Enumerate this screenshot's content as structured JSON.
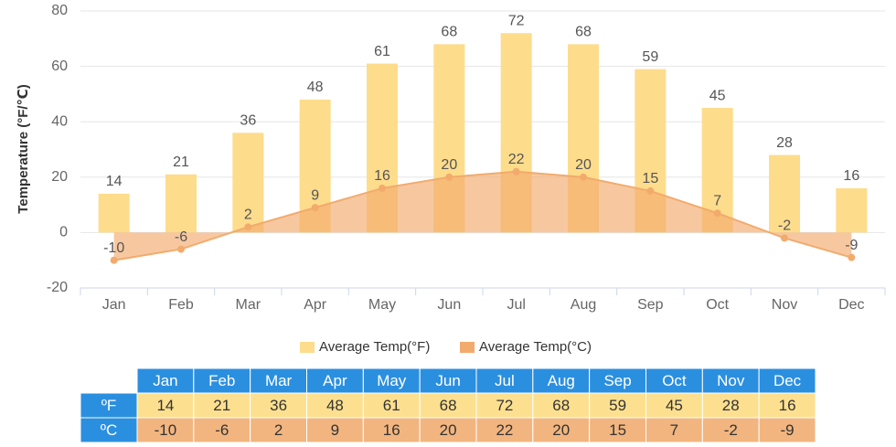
{
  "chart_data": {
    "type": "bar",
    "y_label": "Temperature (°F/℃)",
    "categories": [
      "Jan",
      "Feb",
      "Mar",
      "Apr",
      "May",
      "Jun",
      "Jul",
      "Aug",
      "Sep",
      "Oct",
      "Nov",
      "Dec"
    ],
    "series": [
      {
        "name": "Average Temp(°F)",
        "type": "bar",
        "color": "#fddc8c",
        "values": [
          14,
          21,
          36,
          48,
          61,
          68,
          72,
          68,
          59,
          45,
          28,
          16
        ]
      },
      {
        "name": "Average Temp(°C)",
        "type": "area",
        "color": "#f2ab6d",
        "values": [
          -10,
          -6,
          2,
          9,
          16,
          20,
          22,
          20,
          15,
          7,
          -2,
          -9
        ]
      }
    ],
    "ylim": [
      -20,
      80
    ],
    "yticks": [
      -20,
      0,
      20,
      40,
      60,
      80
    ],
    "grid": true
  },
  "table": {
    "row_labels": [
      "ºF",
      "ºC"
    ]
  }
}
